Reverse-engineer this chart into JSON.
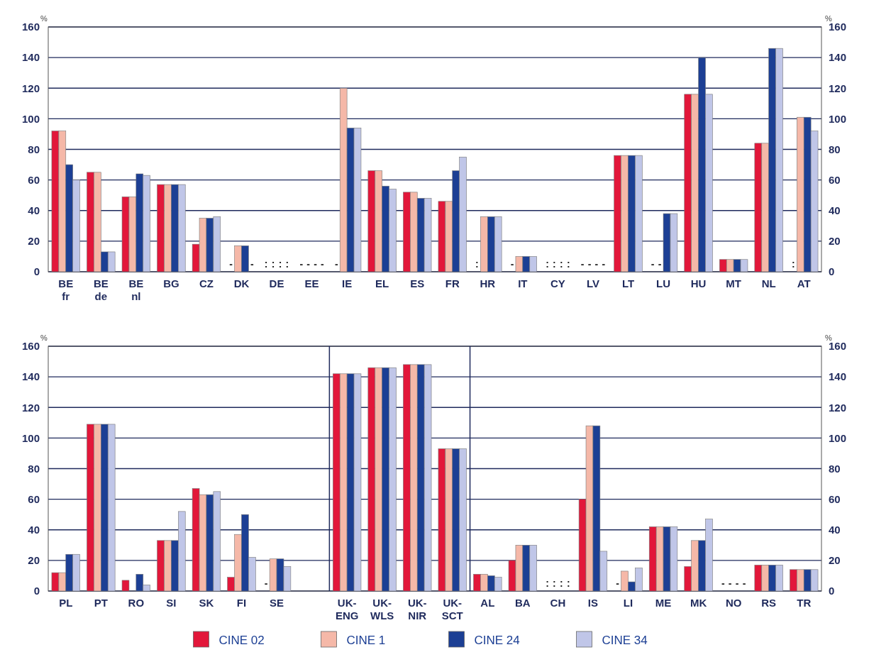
{
  "chart_data": [
    {
      "type": "bar",
      "ylabel": "%",
      "y2label": "%",
      "categories": [
        "BE\nfr",
        "BE\nde",
        "BE\nnl",
        "BG",
        "CZ",
        "DK",
        "DE",
        "EE",
        "IE",
        "EL",
        "ES",
        "FR",
        "HR",
        "IT",
        "CY",
        "LV",
        "LT",
        "LU",
        "HU",
        "MT",
        "NL",
        "AT"
      ],
      "series": [
        {
          "color": "#e2173a",
          "values": [
            92,
            65,
            49,
            57,
            18,
            null,
            null,
            null,
            null,
            66,
            52,
            46,
            null,
            null,
            null,
            null,
            76,
            null,
            116,
            8,
            84,
            null
          ],
          "value_labels": [
            null,
            null,
            null,
            null,
            null,
            "-",
            ":",
            "-",
            "-",
            null,
            null,
            null,
            ":",
            "-",
            ":",
            "-",
            null,
            "-",
            null,
            null,
            null,
            ":"
          ]
        },
        {
          "color": "#f5b8a8",
          "values": [
            92,
            65,
            49,
            57,
            35,
            17,
            null,
            null,
            120,
            66,
            52,
            46,
            36,
            10,
            null,
            null,
            76,
            null,
            116,
            8,
            84,
            101
          ],
          "value_labels": [
            null,
            null,
            null,
            null,
            null,
            null,
            ":",
            "-",
            null,
            null,
            null,
            null,
            null,
            null,
            ":",
            "-",
            null,
            "-",
            null,
            null,
            null,
            null
          ]
        },
        {
          "color": "#1c3f94",
          "values": [
            70,
            13,
            64,
            57,
            35,
            17,
            null,
            null,
            94,
            56,
            48,
            66,
            36,
            10,
            null,
            null,
            76,
            38,
            140,
            8,
            146,
            101
          ],
          "value_labels": [
            null,
            null,
            null,
            null,
            null,
            null,
            ":",
            "-",
            null,
            null,
            null,
            null,
            null,
            null,
            ":",
            "-",
            null,
            null,
            null,
            null,
            null,
            null
          ]
        },
        {
          "color": "#c0c6e8",
          "values": [
            60,
            13,
            63,
            57,
            36,
            null,
            null,
            null,
            94,
            54,
            48,
            75,
            36,
            10,
            null,
            null,
            76,
            38,
            116,
            8,
            146,
            92
          ],
          "value_labels": [
            null,
            null,
            null,
            null,
            null,
            "-",
            ":",
            "-",
            null,
            null,
            null,
            null,
            null,
            null,
            ":",
            "-",
            null,
            null,
            null,
            null,
            null,
            null
          ]
        }
      ],
      "ylim": [
        0,
        160
      ],
      "yticks": [
        0,
        20,
        40,
        60,
        80,
        100,
        120,
        140,
        160
      ],
      "y2lim": [
        0,
        160
      ],
      "y2ticks": [
        0,
        20,
        40,
        60,
        80,
        100,
        120,
        140,
        160
      ],
      "grid": "y",
      "legend": false
    },
    {
      "type": "bar",
      "ylabel": "%",
      "y2label": "%",
      "categories": [
        "PL",
        "PT",
        "RO",
        "SI",
        "SK",
        "FI",
        "SE",
        null,
        "UK-\nENG",
        "UK-\nWLS",
        "UK-\nNIR",
        "UK-\nSCT",
        "AL",
        "BA",
        "CH",
        "IS",
        "LI",
        "ME",
        "MK",
        "NO",
        "RS",
        "TR"
      ],
      "series": [
        {
          "name": "CINE 02",
          "color": "#e2173a",
          "values": [
            12,
            109,
            7,
            33,
            67,
            9,
            null,
            null,
            142,
            146,
            148,
            93,
            11,
            20,
            null,
            60,
            null,
            42,
            16,
            null,
            17,
            14
          ],
          "value_labels": [
            null,
            null,
            null,
            null,
            null,
            null,
            "-",
            null,
            null,
            null,
            null,
            null,
            null,
            null,
            ":",
            null,
            "-",
            null,
            null,
            "-",
            null,
            null
          ]
        },
        {
          "name": "CINE 1",
          "color": "#f5b8a8",
          "values": [
            12,
            109,
            null,
            33,
            63,
            37,
            21,
            null,
            142,
            146,
            148,
            93,
            11,
            30,
            null,
            108,
            13,
            42,
            33,
            null,
            17,
            14
          ],
          "value_labels": [
            null,
            null,
            null,
            null,
            null,
            null,
            null,
            null,
            null,
            null,
            null,
            null,
            null,
            null,
            ":",
            null,
            null,
            null,
            null,
            "-",
            null,
            null
          ]
        },
        {
          "name": "CINE 24",
          "color": "#1c3f94",
          "values": [
            24,
            109,
            11,
            33,
            63,
            50,
            21,
            null,
            142,
            146,
            148,
            93,
            10,
            30,
            null,
            108,
            6,
            42,
            33,
            null,
            17,
            14
          ],
          "value_labels": [
            null,
            null,
            null,
            null,
            null,
            null,
            null,
            null,
            null,
            null,
            null,
            null,
            null,
            null,
            ":",
            null,
            null,
            null,
            null,
            "-",
            null,
            null
          ]
        },
        {
          "name": "CINE 34",
          "color": "#c0c6e8",
          "values": [
            24,
            109,
            4,
            52,
            65,
            22,
            16,
            null,
            142,
            146,
            148,
            93,
            9,
            30,
            null,
            26,
            15,
            42,
            47,
            null,
            17,
            14
          ],
          "value_labels": [
            null,
            null,
            null,
            null,
            null,
            null,
            null,
            null,
            null,
            null,
            null,
            null,
            null,
            null,
            ":",
            null,
            null,
            null,
            null,
            "-",
            null,
            null
          ]
        }
      ],
      "ylim": [
        0,
        160
      ],
      "yticks": [
        0,
        20,
        40,
        60,
        80,
        100,
        120,
        140,
        160
      ],
      "y2lim": [
        0,
        160
      ],
      "y2ticks": [
        0,
        20,
        40,
        60,
        80,
        100,
        120,
        140,
        160
      ],
      "grid": "y",
      "legend": "bottom"
    }
  ]
}
